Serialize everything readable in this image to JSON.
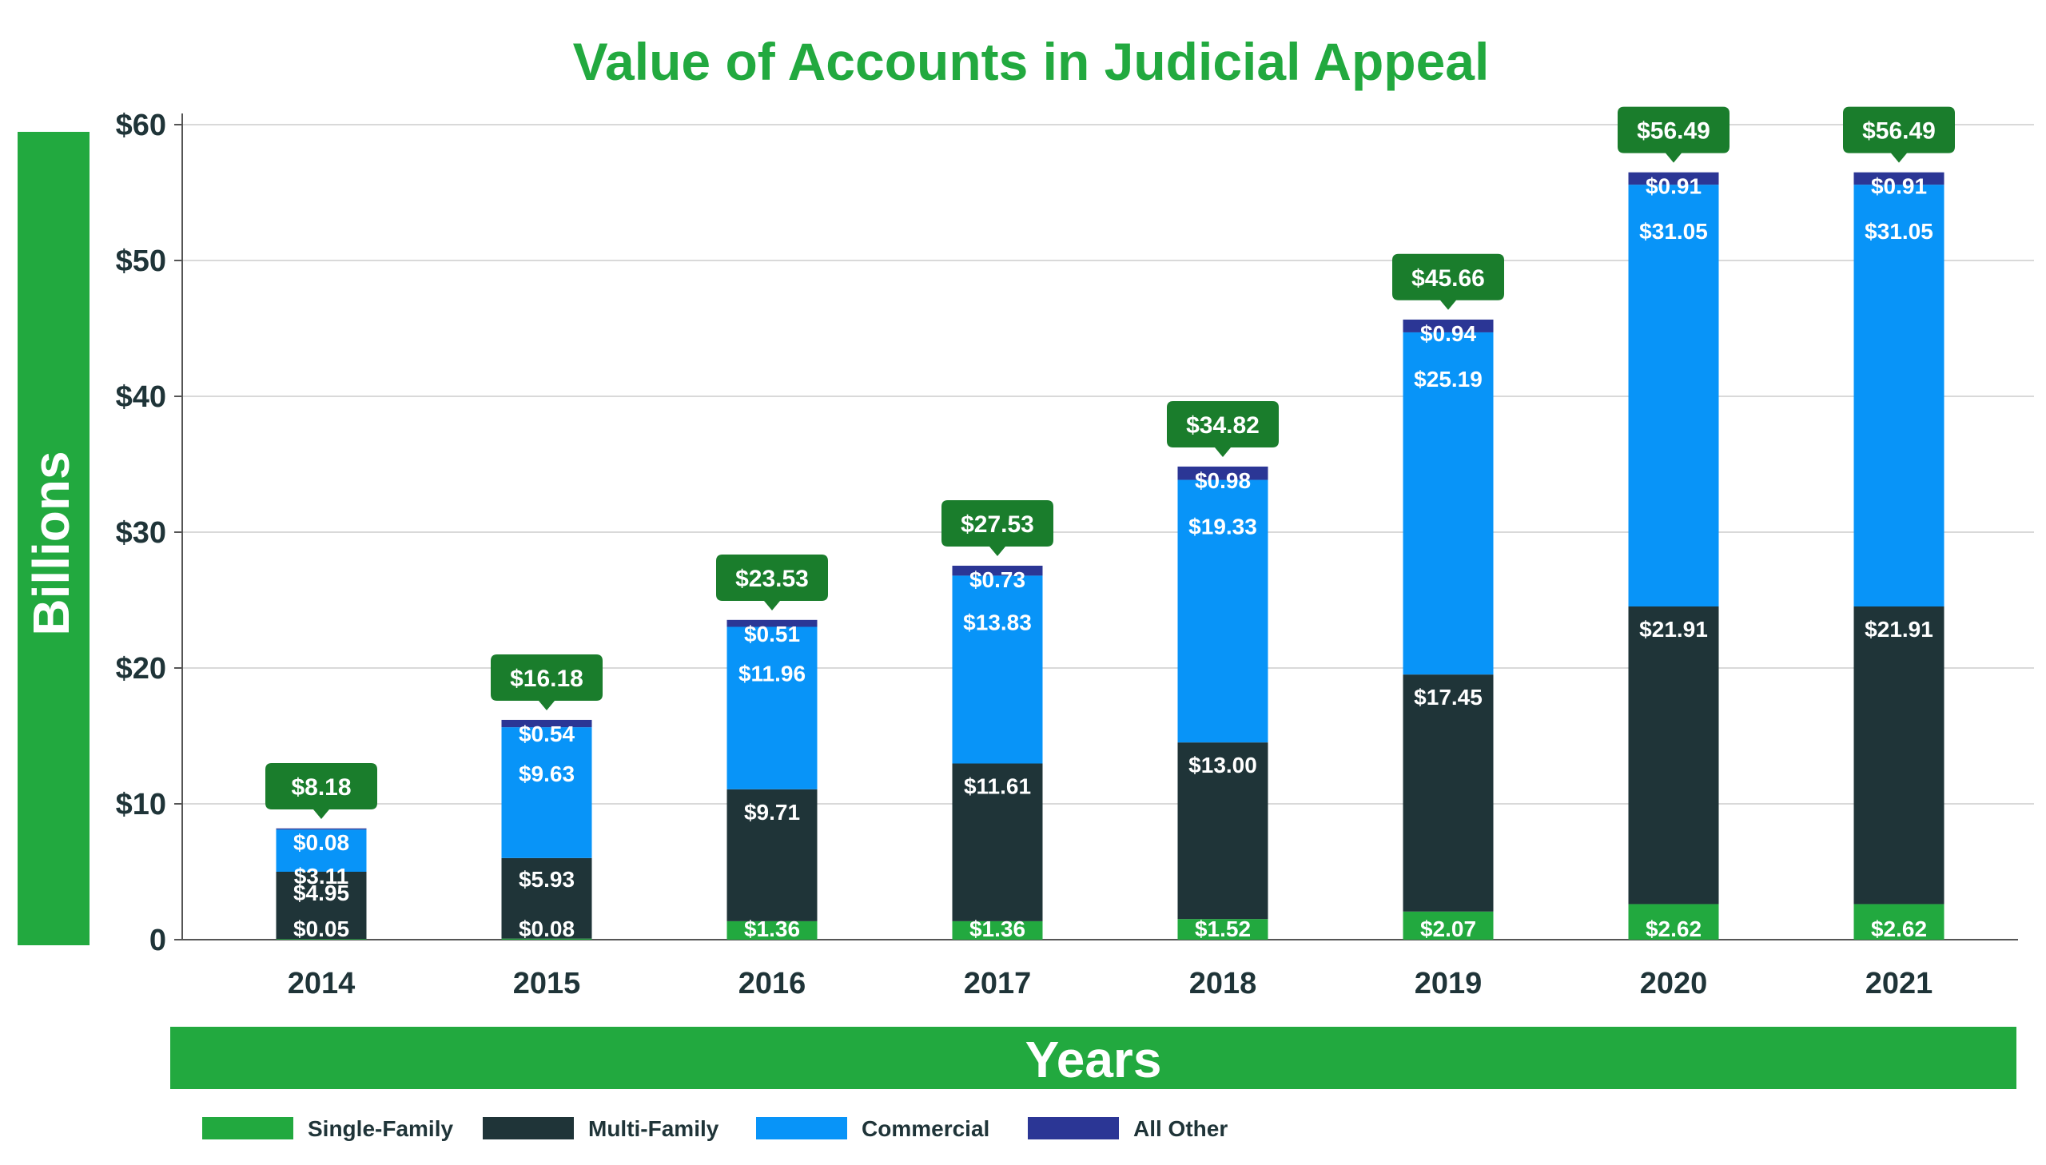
{
  "chart_data": {
    "type": "bar",
    "stacked": true,
    "title": "Value of Accounts in Judicial Appeal",
    "xlabel": "Years",
    "ylabel": "Billions",
    "ylim": [
      0,
      60
    ],
    "yticks": [
      0,
      10,
      20,
      30,
      40,
      50,
      60
    ],
    "ytick_labels": [
      "0",
      "$10",
      "$20",
      "$30",
      "$40",
      "$50",
      "$60"
    ],
    "grid": true,
    "legend_position": "bottom-left",
    "categories": [
      "2014",
      "2015",
      "2016",
      "2017",
      "2018",
      "2019",
      "2020",
      "2021"
    ],
    "series": [
      {
        "name": "Single-Family",
        "color": "#22a93f",
        "values": [
          0.05,
          0.08,
          1.36,
          1.36,
          1.52,
          2.07,
          2.62,
          2.62
        ],
        "labels": [
          "$0.05",
          "$0.08",
          "$1.36",
          "$1.36",
          "$1.52",
          "$2.07",
          "$2.62",
          "$2.62"
        ]
      },
      {
        "name": "Multi-Family",
        "color": "#1f3438",
        "values": [
          4.95,
          5.93,
          9.71,
          11.61,
          13.0,
          17.45,
          21.91,
          21.91
        ],
        "labels": [
          "$4.95",
          "$5.93",
          "$9.71",
          "$11.61",
          "$13.00",
          "$17.45",
          "$21.91",
          "$21.91"
        ]
      },
      {
        "name": "Commercial",
        "color": "#0894f8",
        "values": [
          3.11,
          9.63,
          11.96,
          13.83,
          19.33,
          25.19,
          31.05,
          31.05
        ],
        "labels": [
          "$3.11",
          "$9.63",
          "$11.96",
          "$13.83",
          "$19.33",
          "$25.19",
          "$31.05",
          "$31.05"
        ]
      },
      {
        "name": "All Other",
        "color": "#2b3695",
        "values": [
          0.08,
          0.54,
          0.51,
          0.73,
          0.98,
          0.94,
          0.91,
          0.91
        ],
        "labels": [
          "$0.08",
          "$0.54",
          "$0.51",
          "$0.73",
          "$0.98",
          "$0.94",
          "$0.91",
          "$0.91"
        ]
      }
    ],
    "totals": [
      8.18,
      16.18,
      23.53,
      27.53,
      34.82,
      45.66,
      56.49,
      56.49
    ],
    "total_labels": [
      "$8.18",
      "$16.18",
      "$23.53",
      "$27.53",
      "$34.82",
      "$45.66",
      "$56.49",
      "$56.49"
    ],
    "colors": {
      "title": "#22a93f",
      "axis_band": "#22a93f",
      "callout": "#1a7d2c",
      "text": "#1f3438",
      "grid": "#d9d9d9"
    }
  }
}
